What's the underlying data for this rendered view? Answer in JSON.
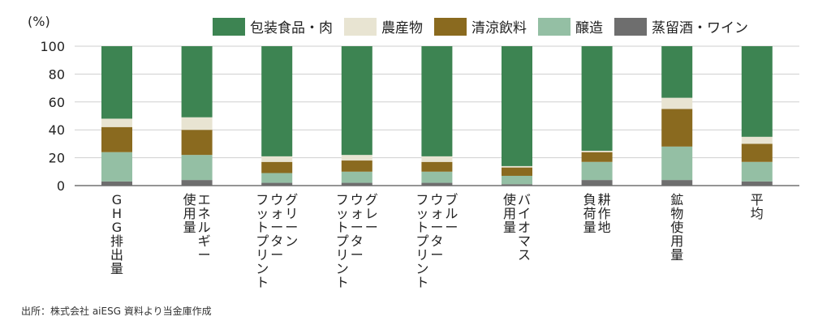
{
  "chart_data": {
    "type": "bar",
    "stacked": true,
    "unit_label": "(%)",
    "ylim": [
      0,
      100
    ],
    "yticks": [
      0,
      20,
      40,
      60,
      80,
      100
    ],
    "grid": true,
    "legend_position": "top",
    "categories": [
      [
        "GHG排出量"
      ],
      [
        "エネルギー",
        "使用量"
      ],
      [
        "グリーン",
        "ウォーター",
        "フットプリント"
      ],
      [
        "グレー",
        "ウォーター",
        "フットプリント"
      ],
      [
        "ブルー",
        "ウォーター",
        "フットプリント"
      ],
      [
        "バイオマス",
        "使用量"
      ],
      [
        "耕作地",
        "負荷量"
      ],
      [
        "鉱物使用量"
      ],
      [
        "平均"
      ]
    ],
    "series": [
      {
        "name": "蒸留酒・ワイン",
        "color": "#6e6e6e",
        "values": [
          3,
          4,
          2,
          2,
          2,
          1,
          4,
          4,
          3
        ]
      },
      {
        "name": "醸造",
        "color": "#94bfa4",
        "values": [
          21,
          18,
          7,
          8,
          8,
          6,
          13,
          24,
          14
        ]
      },
      {
        "name": "清涼飲料",
        "color": "#8a6a1f",
        "values": [
          18,
          18,
          8,
          8,
          7,
          6,
          7,
          27,
          13
        ]
      },
      {
        "name": "農産物",
        "color": "#e8e4d2",
        "values": [
          6,
          9,
          4,
          4,
          4,
          1,
          1,
          8,
          5
        ]
      },
      {
        "name": "包装食品・肉",
        "color": "#3d8452",
        "values": [
          52,
          51,
          79,
          78,
          79,
          86,
          75,
          37,
          65
        ]
      }
    ],
    "legend_order": [
      "包装食品・肉",
      "農産物",
      "清涼飲料",
      "醸造",
      "蒸留酒・ワイン"
    ]
  },
  "source_note": "出所：株式会社 aiESG 資料より当金庫作成"
}
